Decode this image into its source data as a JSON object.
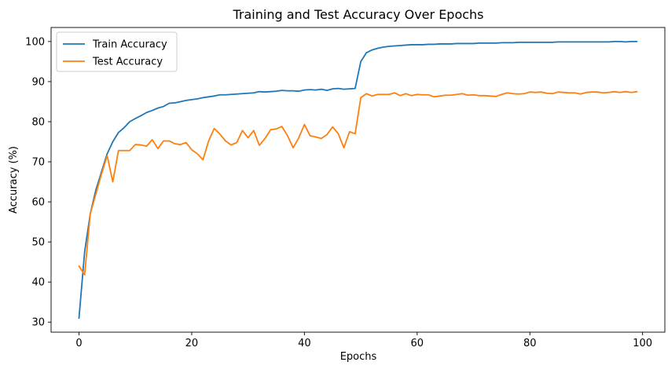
{
  "chart_data": {
    "type": "line",
    "title": "Training and Test Accuracy Over Epochs",
    "xlabel": "Epochs",
    "ylabel": "Accuracy (%)",
    "xlim": [
      -4.95,
      103.95
    ],
    "ylim": [
      27.5,
      103.5
    ],
    "xticks": [
      0,
      20,
      40,
      60,
      80,
      100
    ],
    "yticks": [
      30,
      40,
      50,
      60,
      70,
      80,
      90,
      100
    ],
    "grid": false,
    "legend_position": "top-left",
    "series": [
      {
        "name": "Train Accuracy",
        "color": "#1f77b4",
        "values": [
          31.0,
          47.5,
          57.0,
          63.0,
          67.5,
          72.0,
          75.0,
          77.3,
          78.5,
          80.0,
          80.8,
          81.5,
          82.3,
          82.8,
          83.4,
          83.8,
          84.6,
          84.7,
          85.0,
          85.3,
          85.5,
          85.7,
          86.0,
          86.2,
          86.4,
          86.7,
          86.7,
          86.8,
          86.9,
          87.0,
          87.1,
          87.2,
          87.5,
          87.4,
          87.5,
          87.6,
          87.8,
          87.7,
          87.7,
          87.6,
          87.9,
          88.0,
          87.9,
          88.1,
          87.8,
          88.2,
          88.3,
          88.1,
          88.2,
          88.3,
          95.0,
          97.2,
          97.9,
          98.3,
          98.6,
          98.8,
          98.9,
          99.0,
          99.1,
          99.2,
          99.2,
          99.2,
          99.3,
          99.3,
          99.4,
          99.4,
          99.4,
          99.5,
          99.5,
          99.5,
          99.5,
          99.6,
          99.6,
          99.6,
          99.6,
          99.7,
          99.7,
          99.7,
          99.8,
          99.8,
          99.8,
          99.8,
          99.8,
          99.8,
          99.8,
          99.9,
          99.9,
          99.9,
          99.9,
          99.9,
          99.9,
          99.9,
          99.9,
          99.9,
          99.9,
          100.0,
          100.0,
          99.9,
          100.0,
          100.0
        ]
      },
      {
        "name": "Test Accuracy",
        "color": "#ff7f0e",
        "values": [
          44.0,
          41.8,
          57.0,
          62.0,
          67.0,
          71.5,
          65.0,
          72.8,
          72.8,
          72.8,
          74.3,
          74.2,
          73.9,
          75.5,
          73.3,
          75.2,
          75.2,
          74.5,
          74.3,
          74.8,
          73.0,
          72.0,
          70.5,
          75.2,
          78.3,
          76.9,
          75.2,
          74.2,
          74.8,
          77.8,
          76.0,
          77.8,
          74.1,
          75.8,
          78.0,
          78.2,
          78.8,
          76.5,
          73.5,
          76.0,
          79.3,
          76.5,
          76.2,
          75.8,
          76.8,
          78.7,
          77.0,
          73.5,
          77.5,
          77.0,
          86.0,
          87.0,
          86.4,
          86.8,
          86.8,
          86.8,
          87.2,
          86.5,
          87.0,
          86.5,
          86.8,
          86.7,
          86.7,
          86.2,
          86.4,
          86.6,
          86.6,
          86.8,
          87.0,
          86.6,
          86.7,
          86.5,
          86.5,
          86.4,
          86.3,
          86.8,
          87.2,
          87.0,
          86.9,
          87.0,
          87.4,
          87.3,
          87.4,
          87.1,
          87.0,
          87.4,
          87.3,
          87.2,
          87.2,
          86.9,
          87.3,
          87.4,
          87.4,
          87.2,
          87.3,
          87.5,
          87.3,
          87.5,
          87.3,
          87.5
        ]
      }
    ]
  }
}
